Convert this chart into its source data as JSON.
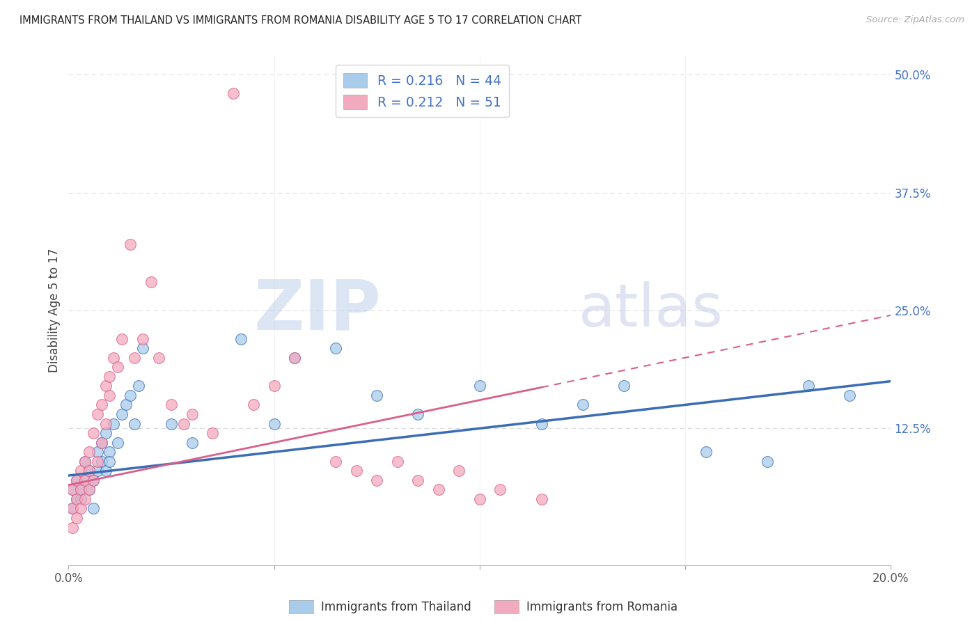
{
  "title": "IMMIGRANTS FROM THAILAND VS IMMIGRANTS FROM ROMANIA DISABILITY AGE 5 TO 17 CORRELATION CHART",
  "source": "Source: ZipAtlas.com",
  "ylabel": "Disability Age 5 to 17",
  "xlim": [
    0.0,
    0.2
  ],
  "ylim": [
    -0.02,
    0.52
  ],
  "legend_R1": "0.216",
  "legend_N1": "44",
  "legend_R2": "0.212",
  "legend_N2": "51",
  "color_thailand": "#A8CCEA",
  "color_romania": "#F2AABE",
  "color_trend_thailand": "#3B6DB5",
  "color_trend_romania": "#D95F8A",
  "color_text_blue": "#4472C4",
  "color_watermark_zip": "#C8D8F0",
  "color_watermark_atlas": "#C8CCE8",
  "background_color": "#FFFFFF",
  "grid_color": "#DDDDDD",
  "yticks_right": [
    0.0,
    0.125,
    0.25,
    0.375,
    0.5
  ],
  "yticklabels_right": [
    "",
    "12.5%",
    "25.0%",
    "37.5%",
    "50.0%"
  ],
  "thailand_x": [
    0.001,
    0.001,
    0.002,
    0.002,
    0.003,
    0.003,
    0.004,
    0.004,
    0.005,
    0.005,
    0.006,
    0.006,
    0.007,
    0.007,
    0.008,
    0.008,
    0.009,
    0.009,
    0.01,
    0.01,
    0.011,
    0.012,
    0.013,
    0.014,
    0.015,
    0.016,
    0.017,
    0.018,
    0.025,
    0.03,
    0.042,
    0.05,
    0.055,
    0.065,
    0.075,
    0.085,
    0.1,
    0.115,
    0.125,
    0.135,
    0.155,
    0.17,
    0.18,
    0.19
  ],
  "thailand_y": [
    0.04,
    0.06,
    0.05,
    0.07,
    0.06,
    0.05,
    0.07,
    0.09,
    0.06,
    0.08,
    0.07,
    0.04,
    0.08,
    0.1,
    0.09,
    0.11,
    0.08,
    0.12,
    0.1,
    0.09,
    0.13,
    0.11,
    0.14,
    0.15,
    0.16,
    0.13,
    0.17,
    0.21,
    0.13,
    0.11,
    0.22,
    0.13,
    0.2,
    0.21,
    0.16,
    0.14,
    0.17,
    0.13,
    0.15,
    0.17,
    0.1,
    0.09,
    0.17,
    0.16
  ],
  "romania_x": [
    0.001,
    0.001,
    0.001,
    0.002,
    0.002,
    0.002,
    0.003,
    0.003,
    0.003,
    0.004,
    0.004,
    0.004,
    0.005,
    0.005,
    0.005,
    0.006,
    0.006,
    0.007,
    0.007,
    0.008,
    0.008,
    0.009,
    0.009,
    0.01,
    0.01,
    0.011,
    0.012,
    0.013,
    0.015,
    0.016,
    0.018,
    0.02,
    0.022,
    0.025,
    0.028,
    0.03,
    0.035,
    0.04,
    0.045,
    0.05,
    0.055,
    0.065,
    0.07,
    0.075,
    0.08,
    0.085,
    0.09,
    0.095,
    0.1,
    0.105,
    0.115
  ],
  "romania_y": [
    0.02,
    0.04,
    0.06,
    0.03,
    0.05,
    0.07,
    0.04,
    0.06,
    0.08,
    0.05,
    0.07,
    0.09,
    0.06,
    0.08,
    0.1,
    0.07,
    0.12,
    0.09,
    0.14,
    0.11,
    0.15,
    0.13,
    0.17,
    0.16,
    0.18,
    0.2,
    0.19,
    0.22,
    0.32,
    0.2,
    0.22,
    0.28,
    0.2,
    0.15,
    0.13,
    0.14,
    0.12,
    0.48,
    0.15,
    0.17,
    0.2,
    0.09,
    0.08,
    0.07,
    0.09,
    0.07,
    0.06,
    0.08,
    0.05,
    0.06,
    0.05
  ],
  "trend_thailand_x0": 0.0,
  "trend_thailand_y0": 0.075,
  "trend_thailand_x1": 0.2,
  "trend_thailand_y1": 0.175,
  "trend_romania_x0": 0.0,
  "trend_romania_y0": 0.065,
  "trend_romania_x1": 0.2,
  "trend_romania_y1": 0.245,
  "trend_romania_dash_start": 0.115
}
